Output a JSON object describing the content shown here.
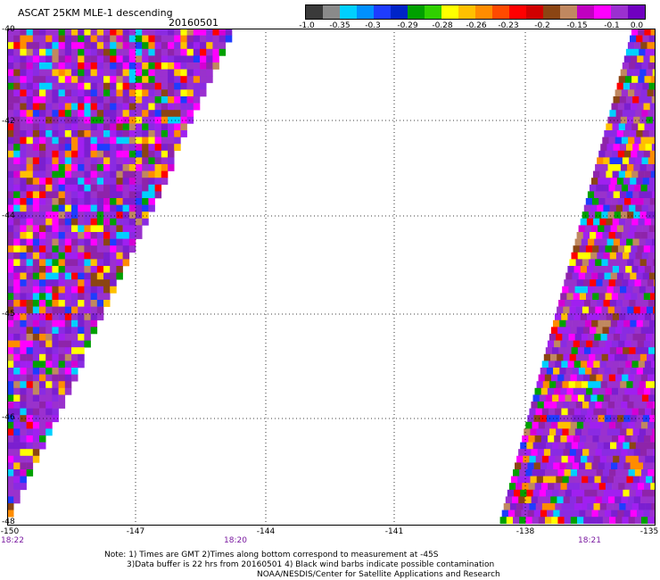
{
  "header": {
    "title": "ASCAT 25KM MLE-1 descending",
    "date": "20160501"
  },
  "legend": {
    "colors": [
      "#3a3a3a",
      "#8a8a8a",
      "#00d0ff",
      "#0090ff",
      "#1e3cff",
      "#0024c8",
      "#00a000",
      "#30d000",
      "#ffff00",
      "#ffc000",
      "#ff8c00",
      "#ff4a00",
      "#ff0000",
      "#d00000",
      "#8b4513",
      "#c08860",
      "#c000c0",
      "#ff00ff",
      "#9b30d0",
      "#7000c0"
    ],
    "labels": [
      "-1.0",
      "-0.35",
      "-0.3",
      "-0.29",
      "-0.28",
      "-0.26",
      "-0.23",
      "-0.2",
      "-0.15",
      "-0.1",
      "0.0"
    ]
  },
  "axes": {
    "y_ticks": [
      "-40",
      "-42",
      "-44",
      "-45",
      "-46",
      "-48"
    ],
    "x_ticks": [
      "-150",
      "-147",
      "-144",
      "-141",
      "-138",
      "-135"
    ]
  },
  "times": [
    "18:22",
    "18:20",
    "18:21"
  ],
  "notes": [
    "Note: 1) Times are GMT 2)Times along bottom correspond to measurement at -45S",
    "3)Data buffer is 22 hrs from 20160501 4) Black wind barbs indicate possible contamination",
    "NOAA/NESDIS/Center for Satellite Applications and Research"
  ]
}
